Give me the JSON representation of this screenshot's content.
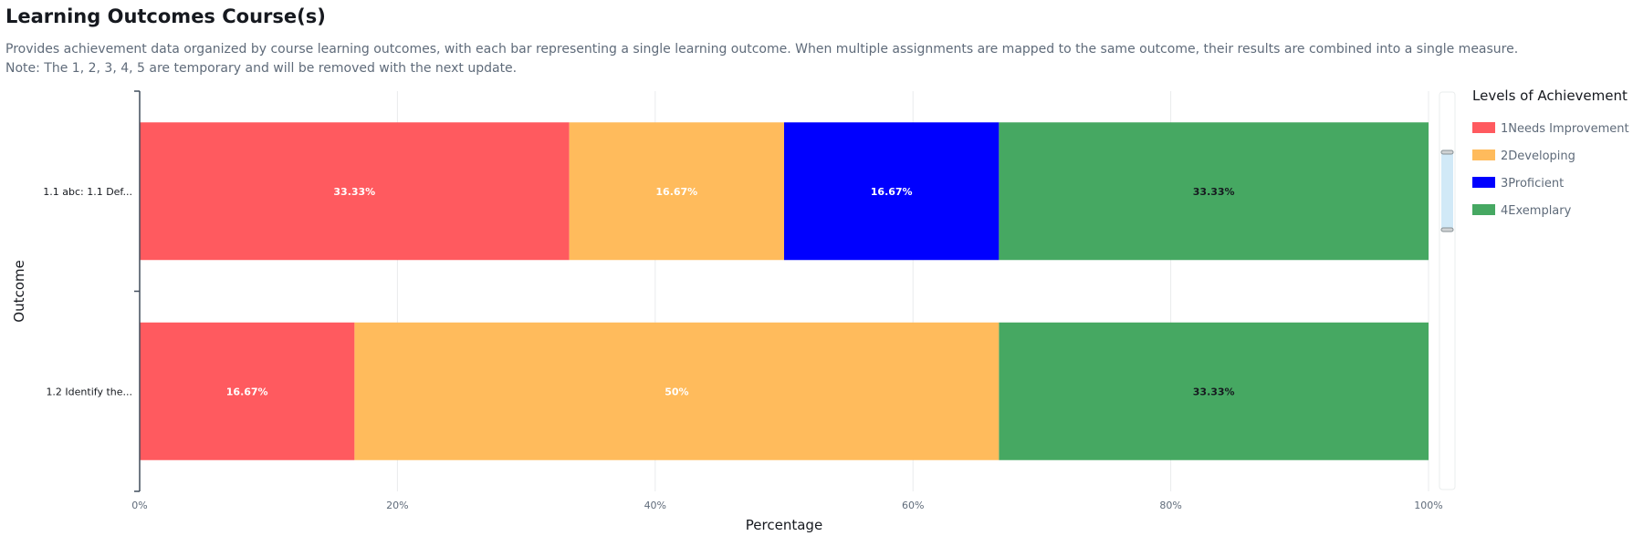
{
  "header": {
    "title": "Learning Outcomes Course(s)",
    "description_line1": "Provides achievement data organized by course learning outcomes, with each bar representing a single learning outcome. When multiple assignments are mapped to the same outcome, their results are combined into a single measure.",
    "description_line2": "Note: The 1, 2, 3, 4, 5 are temporary and will be removed with the next update."
  },
  "chart_data": {
    "type": "bar",
    "orientation": "horizontal",
    "stacked": true,
    "categories": [
      "1.1 abc: 1.1 Def...",
      "1.2 Identify the..."
    ],
    "series": [
      {
        "name": "1Needs Improvement",
        "color": "#ff5a5f",
        "values": [
          33.33,
          16.67
        ],
        "labels": [
          "33.33%",
          "16.67%"
        ],
        "label_color": "#ffffff"
      },
      {
        "name": "2Developing",
        "color": "#ffbb5c",
        "values": [
          16.67,
          50
        ],
        "labels": [
          "16.67%",
          "50%"
        ],
        "label_color": "#ffffff"
      },
      {
        "name": "3Proficient",
        "color": "#0000ff",
        "values": [
          16.67,
          0
        ],
        "labels": [
          "16.67%",
          ""
        ],
        "label_color": "#ffffff"
      },
      {
        "name": "4Exemplary",
        "color": "#46a862",
        "values": [
          33.33,
          33.33
        ],
        "labels": [
          "33.33%",
          "33.33%"
        ],
        "label_color": "#16191f"
      }
    ],
    "xlabel": "Percentage",
    "ylabel": "Outcome",
    "xlim": [
      0,
      100
    ],
    "xticks": [
      "0%",
      "20%",
      "40%",
      "60%",
      "80%",
      "100%"
    ],
    "grid": true,
    "legend": {
      "title": "Levels of Achievement",
      "position": "right"
    }
  }
}
